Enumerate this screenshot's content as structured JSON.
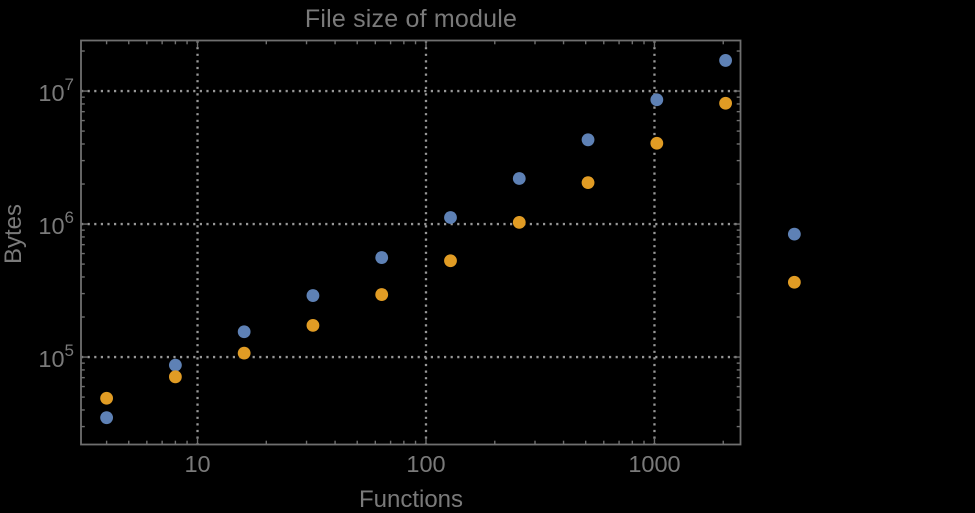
{
  "chart_data": {
    "type": "scatter",
    "title": "File size of module",
    "xlabel": "Functions",
    "ylabel": "Bytes",
    "x_scale": "log",
    "y_scale": "log",
    "grid": "dotted, at decade lines",
    "legend": "none",
    "xlim": [
      3.09,
      2380
    ],
    "ylim": [
      22000,
      24000000
    ],
    "x_ticks": [
      {
        "value": 10,
        "label": "10"
      },
      {
        "value": 100,
        "label": "100"
      },
      {
        "value": 1000,
        "label": "1000"
      }
    ],
    "y_ticks": [
      {
        "value": 100000,
        "label": "10",
        "exp": "5"
      },
      {
        "value": 1000000,
        "label": "10",
        "exp": "6"
      },
      {
        "value": 10000000,
        "label": "10",
        "exp": "7"
      }
    ],
    "x": [
      4,
      8,
      16,
      32,
      64,
      128,
      256,
      512,
      1024,
      2048,
      4096
    ],
    "series": [
      {
        "name": "series-blue",
        "color": "#5E81B5",
        "values": [
          35000,
          87000,
          155000,
          290000,
          560000,
          1120000,
          2200000,
          4300000,
          8600000,
          17000000,
          840000
        ]
      },
      {
        "name": "series-orange",
        "color": "#E19C24",
        "values": [
          49000,
          71000,
          107000,
          173000,
          295000,
          530000,
          1030000,
          2050000,
          4050000,
          8100000,
          365000
        ]
      }
    ],
    "note_last_pair_drawn_outside_right_frame_edge": true
  },
  "colors": {
    "background": "#000000",
    "frame": "#6f6f6f",
    "grid": "#979797",
    "text": "#7a7a7a"
  }
}
